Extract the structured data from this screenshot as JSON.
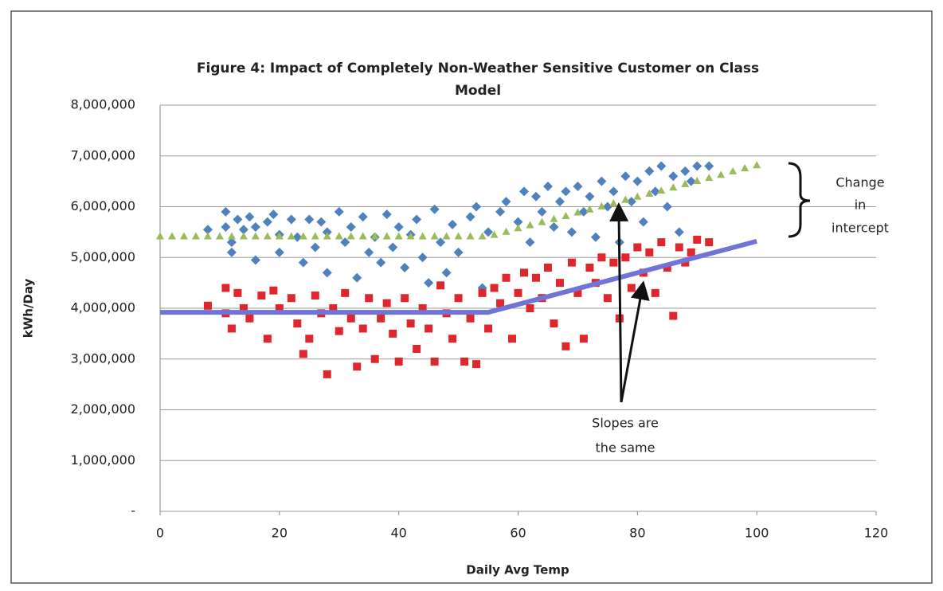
{
  "chart_data": {
    "type": "scatter",
    "title": "Figure 4: Impact of Completely Non-Weather Sensitive Customer on Class",
    "title_line2": "Model",
    "x_label": "Daily Avg Temp",
    "y_label": "kWh/Day",
    "xlim": [
      0,
      120
    ],
    "xticks": [
      0,
      20,
      40,
      60,
      80,
      100,
      120
    ],
    "ylim": [
      0,
      8000000
    ],
    "yticks": [
      {
        "value": 0,
        "label": "-"
      },
      {
        "value": 1000000,
        "label": "1,000,000"
      },
      {
        "value": 2000000,
        "label": "2,000,000"
      },
      {
        "value": 3000000,
        "label": "3,000,000"
      },
      {
        "value": 4000000,
        "label": "4,000,000"
      },
      {
        "value": 5000000,
        "label": "5,000,000"
      },
      {
        "value": 6000000,
        "label": "6,000,000"
      },
      {
        "value": 7000000,
        "label": "7,000,000"
      },
      {
        "value": 8000000,
        "label": "8,000,000"
      }
    ],
    "grid": true,
    "annotations": {
      "intercept": [
        "Change",
        "in",
        "intercept"
      ],
      "slopes": [
        "Slopes are",
        "the same"
      ]
    },
    "series": [
      {
        "color": "#4f81bd",
        "marker": "diamond",
        "x": [
          8,
          11,
          11,
          12,
          12,
          13,
          14,
          15,
          16,
          16,
          18,
          19,
          20,
          20,
          22,
          23,
          24,
          25,
          26,
          27,
          28,
          28,
          30,
          31,
          32,
          33,
          34,
          35,
          36,
          37,
          38,
          39,
          40,
          41,
          42,
          43,
          44,
          45,
          46,
          47,
          48,
          49,
          50,
          52,
          53,
          54,
          55,
          57,
          58,
          60,
          61,
          62,
          63,
          64,
          65,
          66,
          67,
          68,
          69,
          70,
          71,
          72,
          73,
          74,
          75,
          76,
          77,
          78,
          79,
          80,
          81,
          82,
          83,
          84,
          85,
          86,
          87,
          88,
          89,
          90,
          92
        ],
        "values": [
          5550000,
          5900000,
          5600000,
          5300000,
          5100000,
          5750000,
          5550000,
          5800000,
          4950000,
          5600000,
          5700000,
          5850000,
          5450000,
          5100000,
          5750000,
          5400000,
          4900000,
          5750000,
          5200000,
          5700000,
          5500000,
          4700000,
          5900000,
          5300000,
          5600000,
          4600000,
          5800000,
          5100000,
          5400000,
          4900000,
          5850000,
          5200000,
          5600000,
          4800000,
          5450000,
          5750000,
          5000000,
          4500000,
          5950000,
          5300000,
          4700000,
          5650000,
          5100000,
          5800000,
          6000000,
          4400000,
          5500000,
          5900000,
          6100000,
          5700000,
          6300000,
          5300000,
          6200000,
          5900000,
          6400000,
          5600000,
          6100000,
          6300000,
          5500000,
          6400000,
          5900000,
          6200000,
          5400000,
          6500000,
          6000000,
          6300000,
          5300000,
          6600000,
          6100000,
          6500000,
          5700000,
          6700000,
          6300000,
          6800000,
          6000000,
          6600000,
          5500000,
          6700000,
          6500000,
          6800000,
          6800000
        ]
      },
      {
        "color": "#9bbb59",
        "marker": "triangle",
        "x": [
          0,
          2,
          4,
          6,
          8,
          10,
          12,
          14,
          16,
          18,
          20,
          22,
          24,
          26,
          28,
          30,
          32,
          34,
          36,
          38,
          40,
          42,
          44,
          46,
          48,
          50,
          52,
          54,
          56,
          58,
          60,
          62,
          64,
          66,
          68,
          70,
          72,
          74,
          76,
          78,
          80,
          82,
          84,
          86,
          88,
          90,
          92,
          94,
          96,
          98,
          100
        ],
        "values": [
          5420000,
          5420000,
          5420000,
          5420000,
          5420000,
          5420000,
          5420000,
          5420000,
          5420000,
          5420000,
          5420000,
          5420000,
          5420000,
          5420000,
          5420000,
          5420000,
          5420000,
          5420000,
          5420000,
          5420000,
          5420000,
          5420000,
          5420000,
          5420000,
          5420000,
          5420000,
          5420000,
          5420000,
          5450000,
          5510000,
          5580000,
          5640000,
          5700000,
          5760000,
          5820000,
          5890000,
          5950000,
          6010000,
          6070000,
          6140000,
          6200000,
          6260000,
          6320000,
          6380000,
          6450000,
          6510000,
          6570000,
          6630000,
          6700000,
          6760000,
          6820000
        ]
      },
      {
        "color": "#e0262d",
        "marker": "square",
        "x": [
          8,
          11,
          11,
          12,
          13,
          14,
          15,
          17,
          18,
          19,
          20,
          22,
          23,
          24,
          25,
          26,
          27,
          28,
          29,
          30,
          31,
          32,
          33,
          34,
          35,
          36,
          37,
          38,
          39,
          40,
          41,
          42,
          43,
          44,
          45,
          46,
          47,
          48,
          49,
          50,
          51,
          52,
          53,
          54,
          55,
          56,
          57,
          58,
          59,
          60,
          61,
          62,
          63,
          64,
          65,
          66,
          67,
          68,
          69,
          70,
          71,
          72,
          73,
          74,
          75,
          76,
          77,
          78,
          79,
          80,
          81,
          82,
          83,
          84,
          85,
          86,
          87,
          88,
          89,
          90,
          92
        ],
        "values": [
          4050000,
          4400000,
          3900000,
          3600000,
          4300000,
          4000000,
          3800000,
          4250000,
          3400000,
          4350000,
          4000000,
          4200000,
          3700000,
          3100000,
          3400000,
          4250000,
          3900000,
          2700000,
          4000000,
          3550000,
          4300000,
          3800000,
          2850000,
          3600000,
          4200000,
          3000000,
          3800000,
          4100000,
          3500000,
          2950000,
          4200000,
          3700000,
          3200000,
          4000000,
          3600000,
          2950000,
          4450000,
          3900000,
          3400000,
          4200000,
          2950000,
          3800000,
          2900000,
          4300000,
          3600000,
          4400000,
          4100000,
          4600000,
          3400000,
          4300000,
          4700000,
          4000000,
          4600000,
          4200000,
          4800000,
          3700000,
          4500000,
          3250000,
          4900000,
          4300000,
          3400000,
          4800000,
          4500000,
          5000000,
          4200000,
          4900000,
          3800000,
          5000000,
          4400000,
          5200000,
          4700000,
          5100000,
          4300000,
          5300000,
          4800000,
          3850000,
          5200000,
          4900000,
          5100000,
          5350000,
          5300000
        ]
      },
      {
        "color": "#7074d6",
        "marker": "line",
        "x": [
          0,
          55,
          100
        ],
        "values": [
          3920000,
          3920000,
          5320000
        ]
      }
    ]
  }
}
